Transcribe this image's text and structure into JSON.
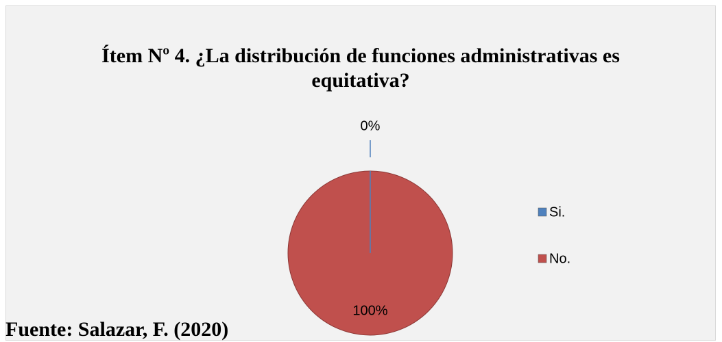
{
  "chart_data": {
    "type": "pie",
    "title": "Ítem Nº 4. ¿La distribución de funciones administrativas es equitativa?",
    "categories": [
      "Si.",
      "No."
    ],
    "values": [
      0,
      100
    ],
    "value_labels": [
      "0%",
      "100%"
    ],
    "colors": [
      "#4f81bd",
      "#c0504d"
    ],
    "legend": "right",
    "source": "Fuente: Salazar, F. (2020)"
  }
}
